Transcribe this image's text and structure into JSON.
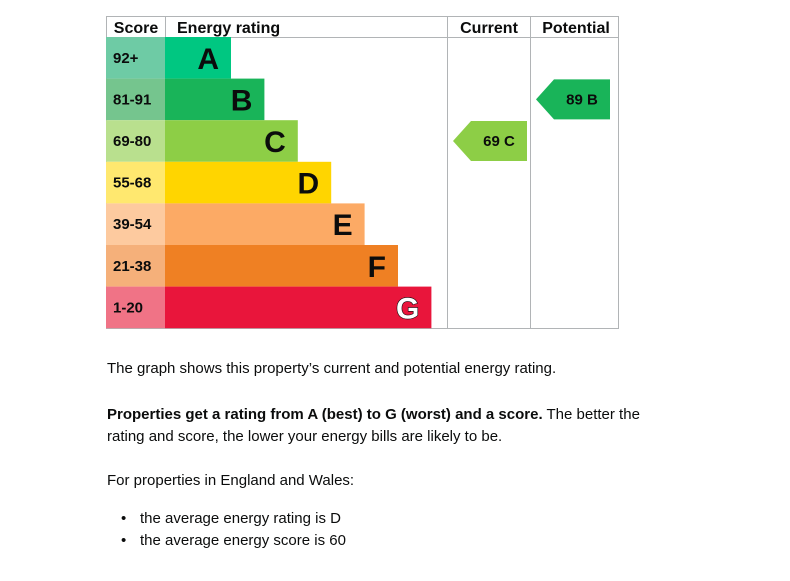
{
  "chart_data": {
    "type": "bar",
    "headers": {
      "score": "Score",
      "energy_rating": "Energy rating",
      "current": "Current",
      "potential": "Potential"
    },
    "bands": [
      {
        "letter": "A",
        "range": "92+",
        "color": "#00c781",
        "score_color": "#6ecba5"
      },
      {
        "letter": "B",
        "range": "81-91",
        "color": "#19b459",
        "score_color": "#75c58e"
      },
      {
        "letter": "C",
        "range": "69-80",
        "color": "#8dce46",
        "score_color": "#b9e08e"
      },
      {
        "letter": "D",
        "range": "55-68",
        "color": "#ffd500",
        "score_color": "#ffe86f"
      },
      {
        "letter": "E",
        "range": "39-54",
        "color": "#fcaa65",
        "score_color": "#fdca9f"
      },
      {
        "letter": "F",
        "range": "21-38",
        "color": "#ef8023",
        "score_color": "#f5b07a"
      },
      {
        "letter": "G",
        "range": "1-20",
        "color": "#e9153b",
        "score_color": "#f07386"
      }
    ],
    "current": {
      "score": 69,
      "letter": "C",
      "label": "69 C",
      "color": "#8dce46"
    },
    "potential": {
      "score": 89,
      "letter": "B",
      "label": "89 B",
      "color": "#19b459"
    }
  },
  "text": {
    "description": "The graph shows this property’s current and potential energy rating.",
    "ratings_bold": "Properties get a rating from A (best) to G (worst) and a score.",
    "ratings_rest": " The better the rating and score, the lower your energy bills are likely to be.",
    "region_label": "For properties in England and Wales:",
    "averages": [
      "the average energy rating is D",
      "the average energy score is 60"
    ]
  }
}
